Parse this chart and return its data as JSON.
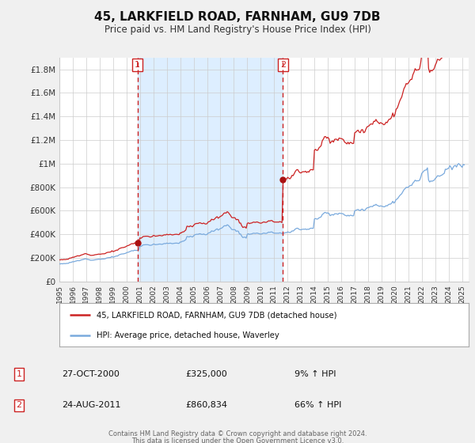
{
  "title": "45, LARKFIELD ROAD, FARNHAM, GU9 7DB",
  "subtitle": "Price paid vs. HM Land Registry's House Price Index (HPI)",
  "ylim": [
    0,
    1900000
  ],
  "xlim_start": 1995.0,
  "xlim_end": 2025.5,
  "yticks": [
    0,
    200000,
    400000,
    600000,
    800000,
    1000000,
    1200000,
    1400000,
    1600000,
    1800000
  ],
  "ytick_labels": [
    "£0",
    "£200K",
    "£400K",
    "£600K",
    "£800K",
    "£1M",
    "£1.2M",
    "£1.4M",
    "£1.6M",
    "£1.8M"
  ],
  "hpi_color": "#7aaadd",
  "price_color": "#cc2222",
  "marker_color": "#aa1111",
  "vline_color": "#cc2222",
  "shade_color": "#ddeeff",
  "transaction1_x": 2000.82,
  "transaction1_y": 325000,
  "transaction2_x": 2011.65,
  "transaction2_y": 860834,
  "legend_line1": "45, LARKFIELD ROAD, FARNHAM, GU9 7DB (detached house)",
  "legend_line2": "HPI: Average price, detached house, Waverley",
  "table_row1_num": "1",
  "table_row1_date": "27-OCT-2000",
  "table_row1_price": "£325,000",
  "table_row1_hpi": "9% ↑ HPI",
  "table_row2_num": "2",
  "table_row2_date": "24-AUG-2011",
  "table_row2_price": "£860,834",
  "table_row2_hpi": "66% ↑ HPI",
  "footer_line1": "Contains HM Land Registry data © Crown copyright and database right 2024.",
  "footer_line2": "This data is licensed under the Open Government Licence v3.0.",
  "background_color": "#f0f0f0",
  "plot_bg_color": "#ffffff",
  "grid_color": "#cccccc",
  "title_fontsize": 11,
  "subtitle_fontsize": 8.5
}
